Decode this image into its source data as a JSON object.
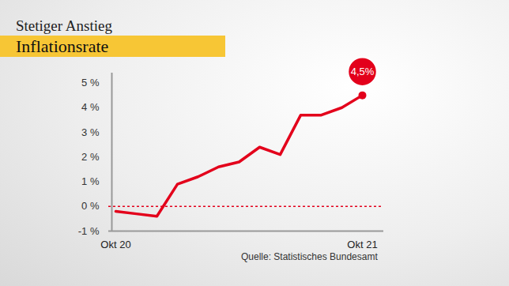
{
  "chart_data": {
    "type": "line",
    "title": "Stetiger Anstieg",
    "subtitle": "Inflationsrate",
    "source": "Quelle: Statistisches Bundesamt",
    "categories": [
      "Okt 20",
      null,
      null,
      null,
      null,
      null,
      null,
      null,
      null,
      null,
      null,
      null,
      "Okt 21"
    ],
    "values": [
      -0.2,
      -0.3,
      -0.4,
      0.9,
      1.2,
      1.6,
      1.8,
      2.4,
      2.1,
      3.7,
      3.7,
      4.0,
      4.5
    ],
    "color": "#e3001b",
    "ylim": [
      -1,
      5.4
    ],
    "yticks": [
      {
        "value": -1,
        "label": "-1 %"
      },
      {
        "value": 0,
        "label": "0 %"
      },
      {
        "value": 1,
        "label": "1 %"
      },
      {
        "value": 2,
        "label": "2 %"
      },
      {
        "value": 3,
        "label": "3 %"
      },
      {
        "value": 4,
        "label": "4 %"
      },
      {
        "value": 5,
        "label": "5 %"
      }
    ],
    "baseline": 0,
    "annotation": "4,5%",
    "grid": false
  }
}
